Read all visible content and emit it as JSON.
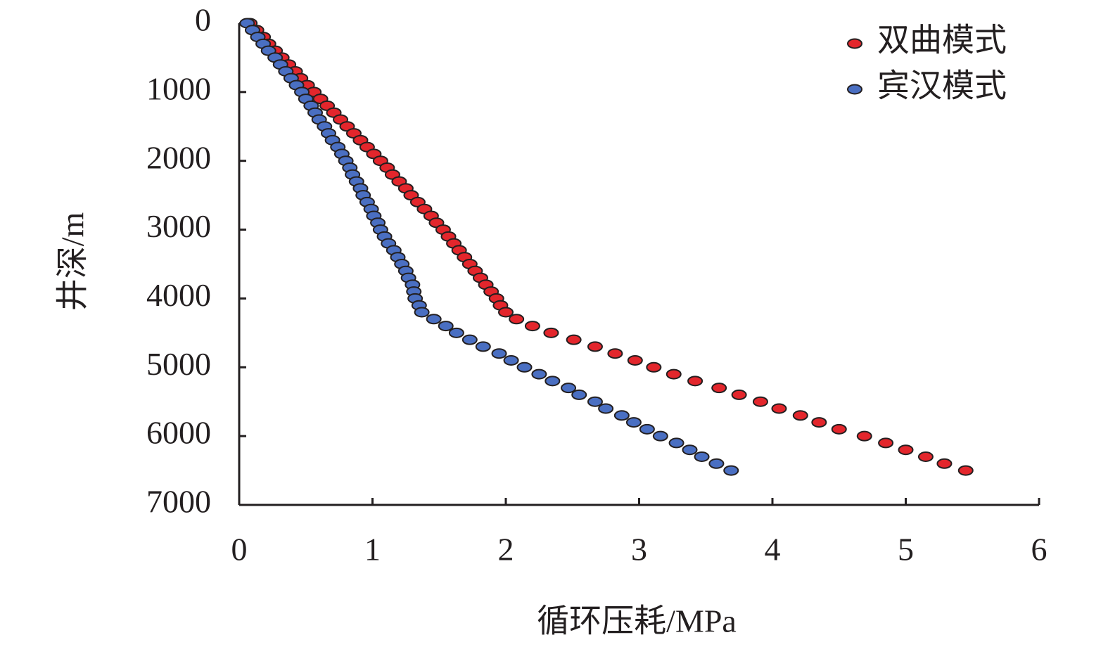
{
  "chart_data": {
    "type": "scatter",
    "xlabel": "循环压耗/MPa",
    "ylabel": "井深/m",
    "xlim": [
      0,
      6
    ],
    "xticks": [
      0,
      1,
      2,
      3,
      4,
      5,
      6
    ],
    "ylim": [
      0,
      7000
    ],
    "yticks": [
      0,
      1000,
      2000,
      3000,
      4000,
      5000,
      6000,
      7000
    ],
    "y_inverted": true,
    "legend": "top-right",
    "series": [
      {
        "name": "双曲模式",
        "color": "#e3262c",
        "x": [
          0.08,
          0.13,
          0.18,
          0.22,
          0.27,
          0.32,
          0.37,
          0.42,
          0.46,
          0.51,
          0.56,
          0.61,
          0.66,
          0.71,
          0.76,
          0.81,
          0.86,
          0.91,
          0.96,
          1.01,
          1.06,
          1.11,
          1.15,
          1.2,
          1.25,
          1.29,
          1.34,
          1.39,
          1.44,
          1.48,
          1.53,
          1.57,
          1.61,
          1.65,
          1.69,
          1.73,
          1.77,
          1.81,
          1.85,
          1.89,
          1.93,
          1.96,
          2.0,
          2.08,
          2.2,
          2.34,
          2.51,
          2.67,
          2.82,
          2.97,
          3.11,
          3.26,
          3.42,
          3.6,
          3.75,
          3.91,
          4.05,
          4.21,
          4.35,
          4.5,
          4.69,
          4.85,
          5.0,
          5.15,
          5.29,
          5.45
        ],
        "values": [
          0,
          100,
          200,
          300,
          400,
          500,
          600,
          700,
          800,
          900,
          1000,
          1100,
          1200,
          1300,
          1400,
          1500,
          1600,
          1700,
          1800,
          1900,
          2000,
          2100,
          2200,
          2300,
          2400,
          2500,
          2600,
          2700,
          2800,
          2900,
          3000,
          3100,
          3200,
          3300,
          3400,
          3500,
          3600,
          3700,
          3800,
          3900,
          4000,
          4100,
          4200,
          4300,
          4400,
          4500,
          4600,
          4700,
          4800,
          4900,
          5000,
          5100,
          5200,
          5300,
          5400,
          5500,
          5600,
          5700,
          5800,
          5900,
          6000,
          6100,
          6200,
          6300,
          6400,
          6500
        ]
      },
      {
        "name": "宾汉模式",
        "color": "#4a6fc2",
        "x": [
          0.06,
          0.1,
          0.14,
          0.18,
          0.22,
          0.27,
          0.31,
          0.35,
          0.39,
          0.43,
          0.47,
          0.5,
          0.54,
          0.57,
          0.6,
          0.64,
          0.67,
          0.7,
          0.74,
          0.77,
          0.8,
          0.83,
          0.85,
          0.88,
          0.91,
          0.93,
          0.96,
          0.99,
          1.01,
          1.04,
          1.06,
          1.09,
          1.12,
          1.16,
          1.19,
          1.22,
          1.25,
          1.27,
          1.3,
          1.31,
          1.32,
          1.35,
          1.37,
          1.46,
          1.55,
          1.63,
          1.73,
          1.83,
          1.95,
          2.04,
          2.14,
          2.25,
          2.35,
          2.47,
          2.55,
          2.67,
          2.75,
          2.87,
          2.96,
          3.06,
          3.16,
          3.28,
          3.38,
          3.47,
          3.58,
          3.69
        ],
        "values": [
          0,
          100,
          200,
          300,
          400,
          500,
          600,
          700,
          800,
          900,
          1000,
          1100,
          1200,
          1300,
          1400,
          1500,
          1600,
          1700,
          1800,
          1900,
          2000,
          2100,
          2200,
          2300,
          2400,
          2500,
          2600,
          2700,
          2800,
          2900,
          3000,
          3100,
          3200,
          3300,
          3400,
          3500,
          3600,
          3700,
          3800,
          3900,
          4000,
          4100,
          4200,
          4300,
          4400,
          4500,
          4600,
          4700,
          4800,
          4900,
          5000,
          5100,
          5200,
          5300,
          5400,
          5500,
          5600,
          5700,
          5800,
          5900,
          6000,
          6100,
          6200,
          6300,
          6400,
          6500
        ]
      }
    ]
  }
}
